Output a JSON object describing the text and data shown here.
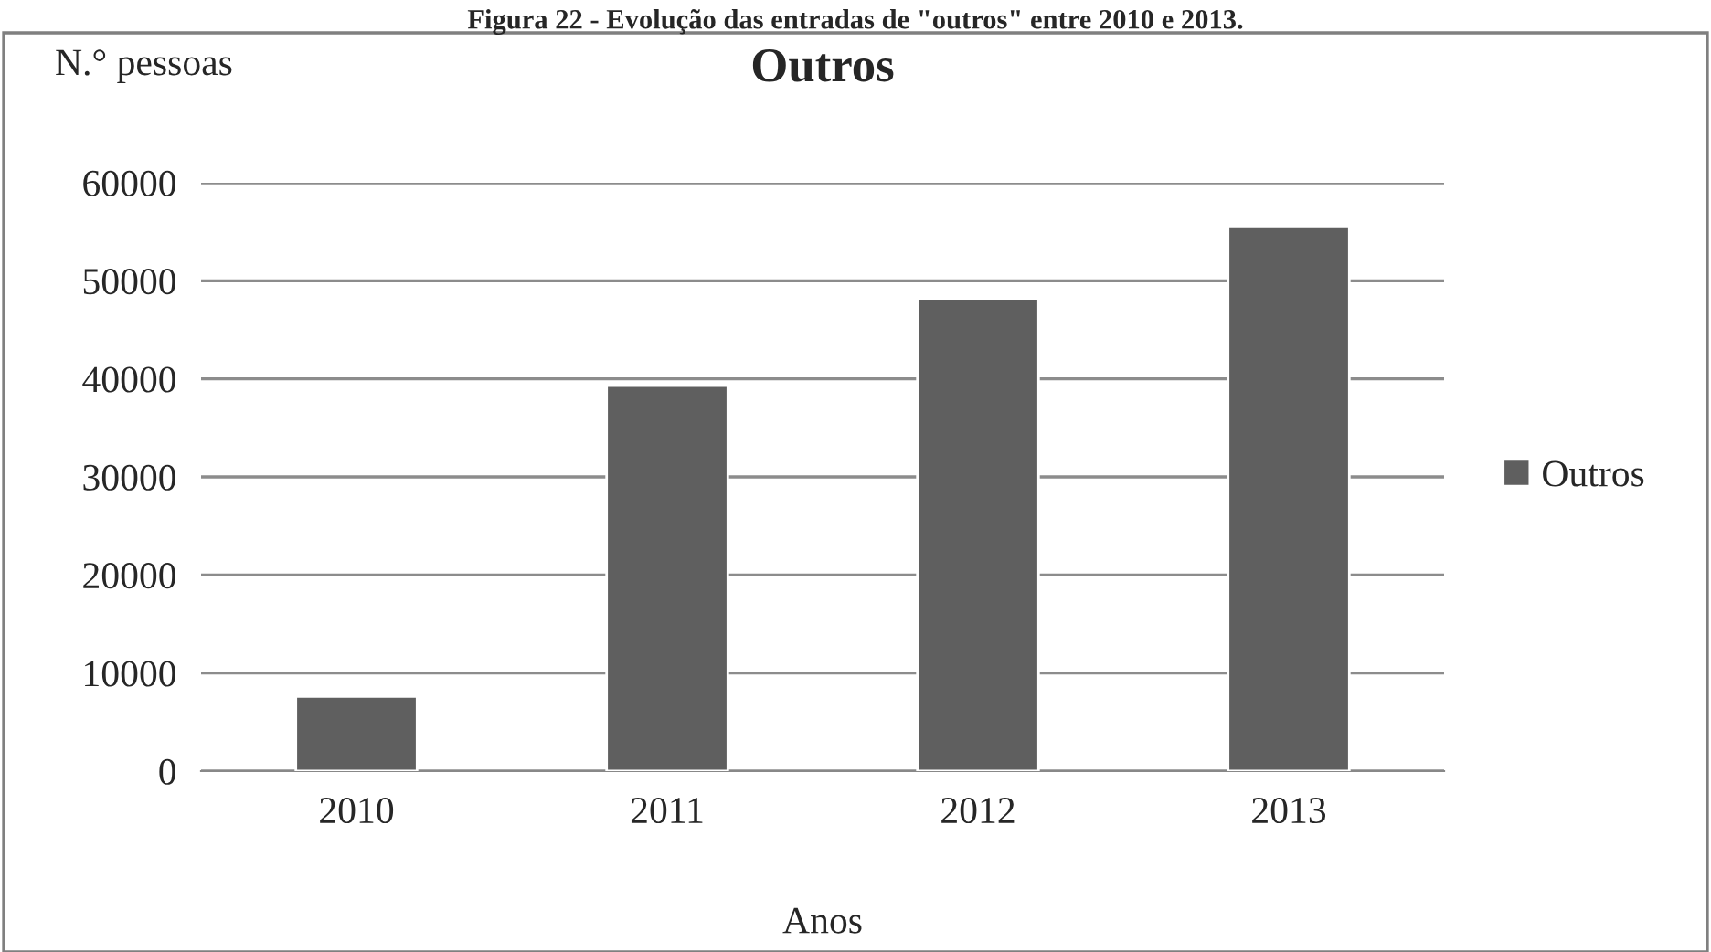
{
  "chart_data": {
    "type": "bar",
    "title": "Outros",
    "ylabel": "N.° pessoas",
    "xlabel": "Anos",
    "annotations": [
      "Figura 22 - Evolução das entradas de \"outros\" entre 2010 e 2013."
    ],
    "categories": [
      "2010",
      "2011",
      "2012",
      "2013"
    ],
    "series": [
      {
        "name": "Outros",
        "color": "#5f5f5f",
        "values": [
          7600,
          39300,
          48200,
          55500
        ]
      }
    ],
    "ylim": [
      0,
      60000
    ],
    "yticks": [
      0,
      10000,
      20000,
      30000,
      40000,
      50000,
      60000
    ],
    "grid": "y",
    "legend": "right"
  }
}
